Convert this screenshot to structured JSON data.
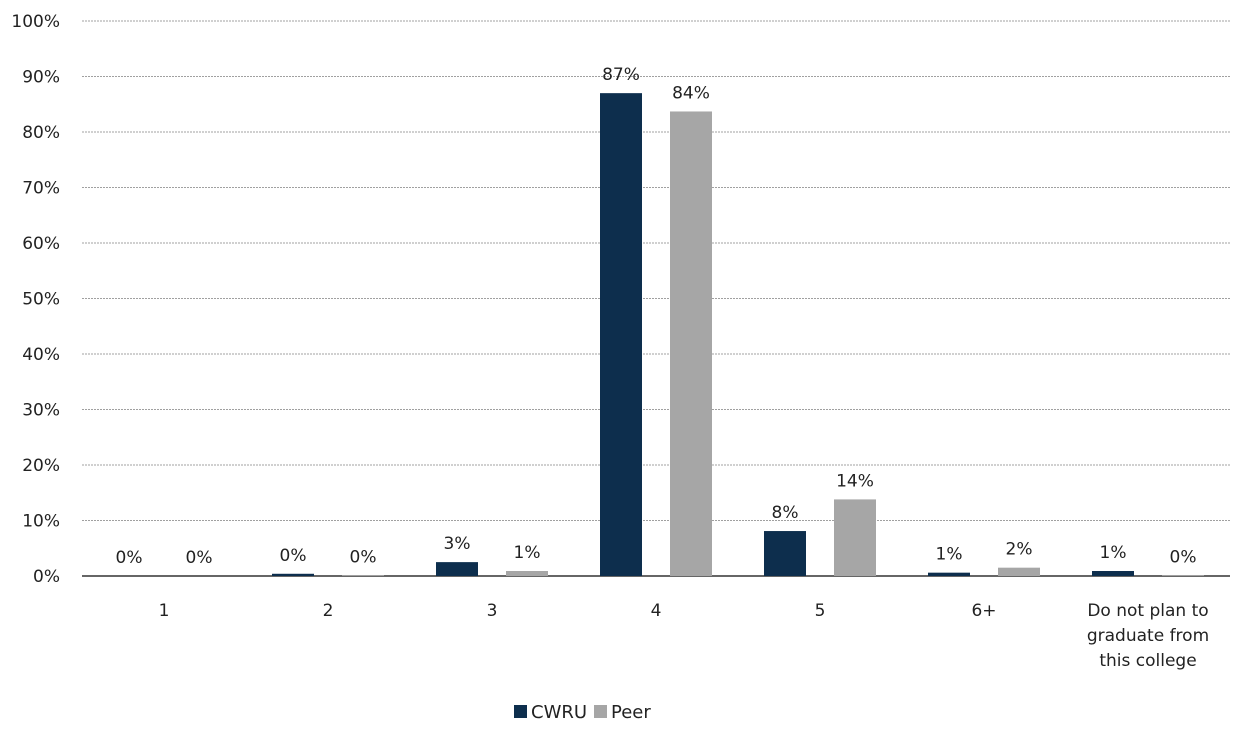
{
  "chart_data": {
    "type": "bar",
    "title": "",
    "xlabel": "",
    "ylabel": "",
    "categories": [
      "1",
      "2",
      "3",
      "4",
      "5",
      "6+",
      [
        "Do not plan to",
        "graduate from",
        "this college"
      ]
    ],
    "series": [
      {
        "name": "CWRU",
        "values": [
          0,
          0.4,
          2.5,
          87,
          8.1,
          0.6,
          0.9
        ],
        "labels": [
          "0%",
          "0%",
          "3%",
          "87%",
          "8%",
          "1%",
          "1%"
        ]
      },
      {
        "name": "Peer",
        "values": [
          0,
          0.1,
          0.9,
          83.7,
          13.8,
          1.5,
          0.1
        ],
        "labels": [
          "0%",
          "0%",
          "1%",
          "84%",
          "14%",
          "2%",
          "0%"
        ]
      }
    ],
    "ylim": [
      0,
      100
    ],
    "yticks": [
      "0%",
      "10%",
      "20%",
      "30%",
      "40%",
      "50%",
      "60%",
      "70%",
      "80%",
      "90%",
      "100%"
    ],
    "grid": true,
    "legend_position": "bottom",
    "colors": {
      "CWRU": "#0d2e4d",
      "Peer": "#a6a6a6",
      "grid": "#a0a0a0",
      "axis": "#333333"
    }
  }
}
